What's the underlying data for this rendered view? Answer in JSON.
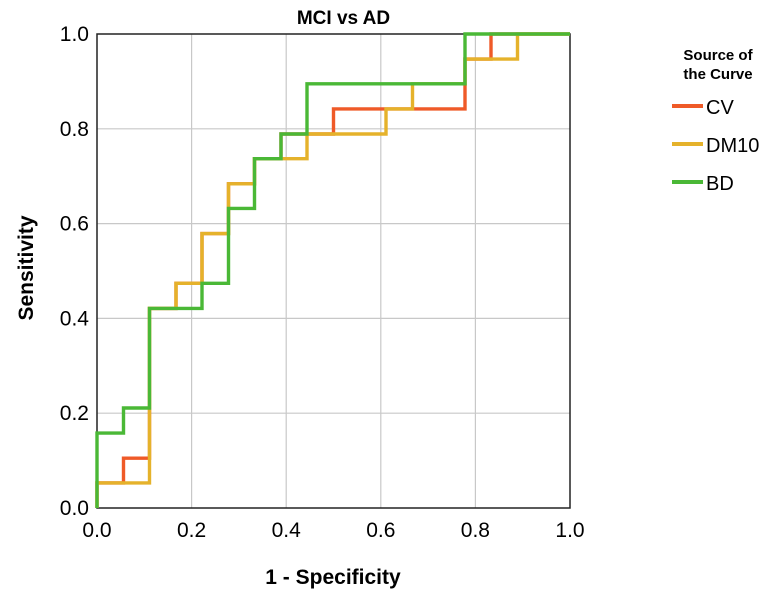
{
  "chart_data": {
    "type": "line",
    "title": "MCI vs AD",
    "xlabel": "1 - Specificity",
    "ylabel": "Sensitivity",
    "xlim": [
      0,
      1
    ],
    "ylim": [
      0,
      1
    ],
    "xticks": [
      "0.0",
      "0.2",
      "0.4",
      "0.6",
      "0.8",
      "1.0"
    ],
    "yticks": [
      "0.0",
      "0.2",
      "0.4",
      "0.6",
      "0.8",
      "1.0"
    ],
    "grid": true,
    "legend": {
      "title_lines": [
        "Source of",
        "the Curve"
      ],
      "position": "right"
    },
    "series": [
      {
        "name": "CV",
        "color": "#ef5a28",
        "points": [
          [
            0,
            0
          ],
          [
            0,
            0.053
          ],
          [
            0.056,
            0.053
          ],
          [
            0.056,
            0.105
          ],
          [
            0.111,
            0.105
          ],
          [
            0.111,
            0.421
          ],
          [
            0.167,
            0.421
          ],
          [
            0.167,
            0.474
          ],
          [
            0.222,
            0.474
          ],
          [
            0.222,
            0.579
          ],
          [
            0.278,
            0.579
          ],
          [
            0.278,
            0.684
          ],
          [
            0.333,
            0.684
          ],
          [
            0.333,
            0.737
          ],
          [
            0.389,
            0.737
          ],
          [
            0.389,
            0.789
          ],
          [
            0.444,
            0.789
          ],
          [
            0.5,
            0.789
          ],
          [
            0.5,
            0.842
          ],
          [
            0.611,
            0.842
          ],
          [
            0.778,
            0.842
          ],
          [
            0.778,
            0.947
          ],
          [
            0.833,
            0.947
          ],
          [
            0.833,
            1.0
          ],
          [
            1,
            1
          ]
        ]
      },
      {
        "name": "DM10",
        "color": "#e5b22b",
        "points": [
          [
            0,
            0
          ],
          [
            0,
            0.053
          ],
          [
            0.111,
            0.053
          ],
          [
            0.111,
            0.421
          ],
          [
            0.167,
            0.421
          ],
          [
            0.167,
            0.474
          ],
          [
            0.222,
            0.474
          ],
          [
            0.222,
            0.579
          ],
          [
            0.278,
            0.579
          ],
          [
            0.278,
            0.684
          ],
          [
            0.333,
            0.684
          ],
          [
            0.333,
            0.737
          ],
          [
            0.389,
            0.737
          ],
          [
            0.444,
            0.737
          ],
          [
            0.444,
            0.789
          ],
          [
            0.611,
            0.789
          ],
          [
            0.611,
            0.842
          ],
          [
            0.667,
            0.842
          ],
          [
            0.667,
            0.895
          ],
          [
            0.778,
            0.895
          ],
          [
            0.778,
            0.947
          ],
          [
            0.833,
            0.947
          ],
          [
            0.889,
            0.947
          ],
          [
            0.889,
            1.0
          ],
          [
            1,
            1
          ]
        ]
      },
      {
        "name": "BD",
        "color": "#4ab836",
        "points": [
          [
            0,
            0
          ],
          [
            0,
            0.158
          ],
          [
            0.056,
            0.158
          ],
          [
            0.056,
            0.211
          ],
          [
            0.111,
            0.211
          ],
          [
            0.111,
            0.421
          ],
          [
            0.222,
            0.421
          ],
          [
            0.222,
            0.474
          ],
          [
            0.278,
            0.474
          ],
          [
            0.278,
            0.632
          ],
          [
            0.333,
            0.632
          ],
          [
            0.333,
            0.737
          ],
          [
            0.389,
            0.737
          ],
          [
            0.389,
            0.789
          ],
          [
            0.444,
            0.789
          ],
          [
            0.444,
            0.895
          ],
          [
            0.778,
            0.895
          ],
          [
            0.778,
            1.0
          ],
          [
            1,
            1
          ]
        ]
      }
    ]
  }
}
